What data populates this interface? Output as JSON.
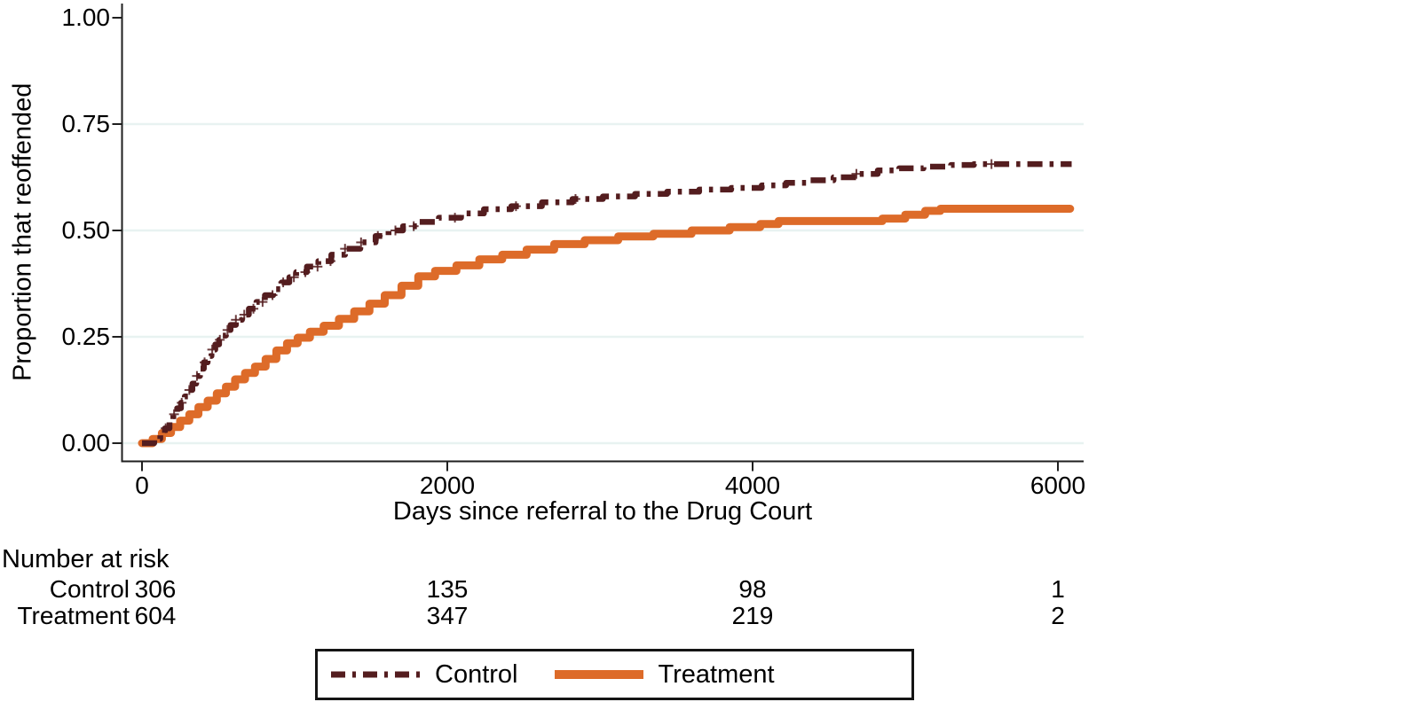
{
  "chart_data": {
    "type": "line",
    "subtype": "kaplan-meier-failure-step",
    "title": "",
    "xlabel": "Days since referral to the Drug Court",
    "ylabel": "Proportion that reoffended",
    "xlim": [
      0,
      6170
    ],
    "ylim": [
      0,
      1
    ],
    "xticks": [
      0,
      2000,
      4000,
      6000
    ],
    "xtick_labels": [
      "0",
      "2000",
      "4000",
      "6000"
    ],
    "yticks": [
      0.0,
      0.25,
      0.5,
      0.75,
      1.0
    ],
    "ytick_labels": [
      "0.00",
      "0.25",
      "0.50",
      "0.75",
      "1.00"
    ],
    "grid": "horizontal-pale",
    "grid_color": "#e8f2f1",
    "axis_color": "#1f1f1f",
    "legend_position": "bottom-center-boxed",
    "series": [
      {
        "name": "Control",
        "color": "#541d1f",
        "style": "dash-dot",
        "stroke_width": 6.5,
        "points": [
          [
            0,
            0
          ],
          [
            80,
            0.01
          ],
          [
            120,
            0.02
          ],
          [
            150,
            0.035
          ],
          [
            180,
            0.05
          ],
          [
            205,
            0.068
          ],
          [
            230,
            0.082
          ],
          [
            255,
            0.095
          ],
          [
            280,
            0.11
          ],
          [
            305,
            0.125
          ],
          [
            330,
            0.14
          ],
          [
            355,
            0.158
          ],
          [
            380,
            0.175
          ],
          [
            405,
            0.19
          ],
          [
            430,
            0.205
          ],
          [
            455,
            0.22
          ],
          [
            480,
            0.232
          ],
          [
            505,
            0.243
          ],
          [
            525,
            0.253
          ],
          [
            550,
            0.266
          ],
          [
            580,
            0.278
          ],
          [
            615,
            0.29
          ],
          [
            655,
            0.302
          ],
          [
            700,
            0.316
          ],
          [
            750,
            0.332
          ],
          [
            805,
            0.348
          ],
          [
            860,
            0.362
          ],
          [
            915,
            0.378
          ],
          [
            965,
            0.39
          ],
          [
            1010,
            0.402
          ],
          [
            1080,
            0.415
          ],
          [
            1155,
            0.428
          ],
          [
            1240,
            0.443
          ],
          [
            1330,
            0.457
          ],
          [
            1430,
            0.472
          ],
          [
            1530,
            0.487
          ],
          [
            1615,
            0.5
          ],
          [
            1710,
            0.51
          ],
          [
            1815,
            0.52
          ],
          [
            1945,
            0.53
          ],
          [
            2090,
            0.54
          ],
          [
            2240,
            0.55
          ],
          [
            2420,
            0.557
          ],
          [
            2620,
            0.566
          ],
          [
            2820,
            0.574
          ],
          [
            3020,
            0.58
          ],
          [
            3230,
            0.586
          ],
          [
            3440,
            0.591
          ],
          [
            3650,
            0.596
          ],
          [
            3860,
            0.6
          ],
          [
            4060,
            0.606
          ],
          [
            4220,
            0.612
          ],
          [
            4380,
            0.618
          ],
          [
            4530,
            0.625
          ],
          [
            4680,
            0.633
          ],
          [
            4820,
            0.641
          ],
          [
            4960,
            0.646
          ],
          [
            5120,
            0.65
          ],
          [
            5300,
            0.654
          ],
          [
            5450,
            0.656
          ],
          [
            6090,
            0.656
          ]
        ],
        "censor_days": [
          155,
          210,
          260,
          310,
          360,
          410,
          460,
          510,
          560,
          615,
          670,
          730,
          790,
          855,
          925,
          995,
          1070,
          1150,
          1235,
          1330,
          1435,
          1545,
          1660,
          1780,
          2050,
          2450,
          2840,
          4680,
          5565
        ]
      },
      {
        "name": "Treatment",
        "color": "#dd6b29",
        "style": "solid",
        "stroke_width": 9,
        "points": [
          [
            0,
            0
          ],
          [
            70,
            0.01
          ],
          [
            130,
            0.024
          ],
          [
            190,
            0.038
          ],
          [
            250,
            0.053
          ],
          [
            310,
            0.068
          ],
          [
            370,
            0.085
          ],
          [
            430,
            0.1
          ],
          [
            490,
            0.117
          ],
          [
            550,
            0.133
          ],
          [
            610,
            0.15
          ],
          [
            675,
            0.165
          ],
          [
            740,
            0.18
          ],
          [
            810,
            0.198
          ],
          [
            880,
            0.218
          ],
          [
            950,
            0.235
          ],
          [
            1020,
            0.248
          ],
          [
            1100,
            0.262
          ],
          [
            1190,
            0.276
          ],
          [
            1290,
            0.292
          ],
          [
            1390,
            0.31
          ],
          [
            1490,
            0.328
          ],
          [
            1590,
            0.348
          ],
          [
            1700,
            0.37
          ],
          [
            1810,
            0.392
          ],
          [
            1920,
            0.405
          ],
          [
            2060,
            0.418
          ],
          [
            2210,
            0.432
          ],
          [
            2360,
            0.443
          ],
          [
            2520,
            0.455
          ],
          [
            2700,
            0.468
          ],
          [
            2900,
            0.477
          ],
          [
            3120,
            0.486
          ],
          [
            3350,
            0.492
          ],
          [
            3600,
            0.5
          ],
          [
            3850,
            0.508
          ],
          [
            4050,
            0.515
          ],
          [
            4170,
            0.522
          ],
          [
            4850,
            0.528
          ],
          [
            5000,
            0.537
          ],
          [
            5130,
            0.546
          ],
          [
            5230,
            0.551
          ],
          [
            6080,
            0.551
          ]
        ],
        "censor_days": []
      }
    ],
    "risk_table": {
      "title": "Number at risk",
      "times": [
        0,
        2000,
        4000,
        6000
      ],
      "rows": [
        {
          "label": "Control",
          "counts": [
            "306",
            "135",
            "98",
            "1"
          ]
        },
        {
          "label": "Treatment",
          "counts": [
            "604",
            "347",
            "219",
            "2"
          ]
        }
      ]
    },
    "legend": {
      "entries": [
        {
          "label": "Control"
        },
        {
          "label": "Treatment"
        }
      ]
    }
  }
}
